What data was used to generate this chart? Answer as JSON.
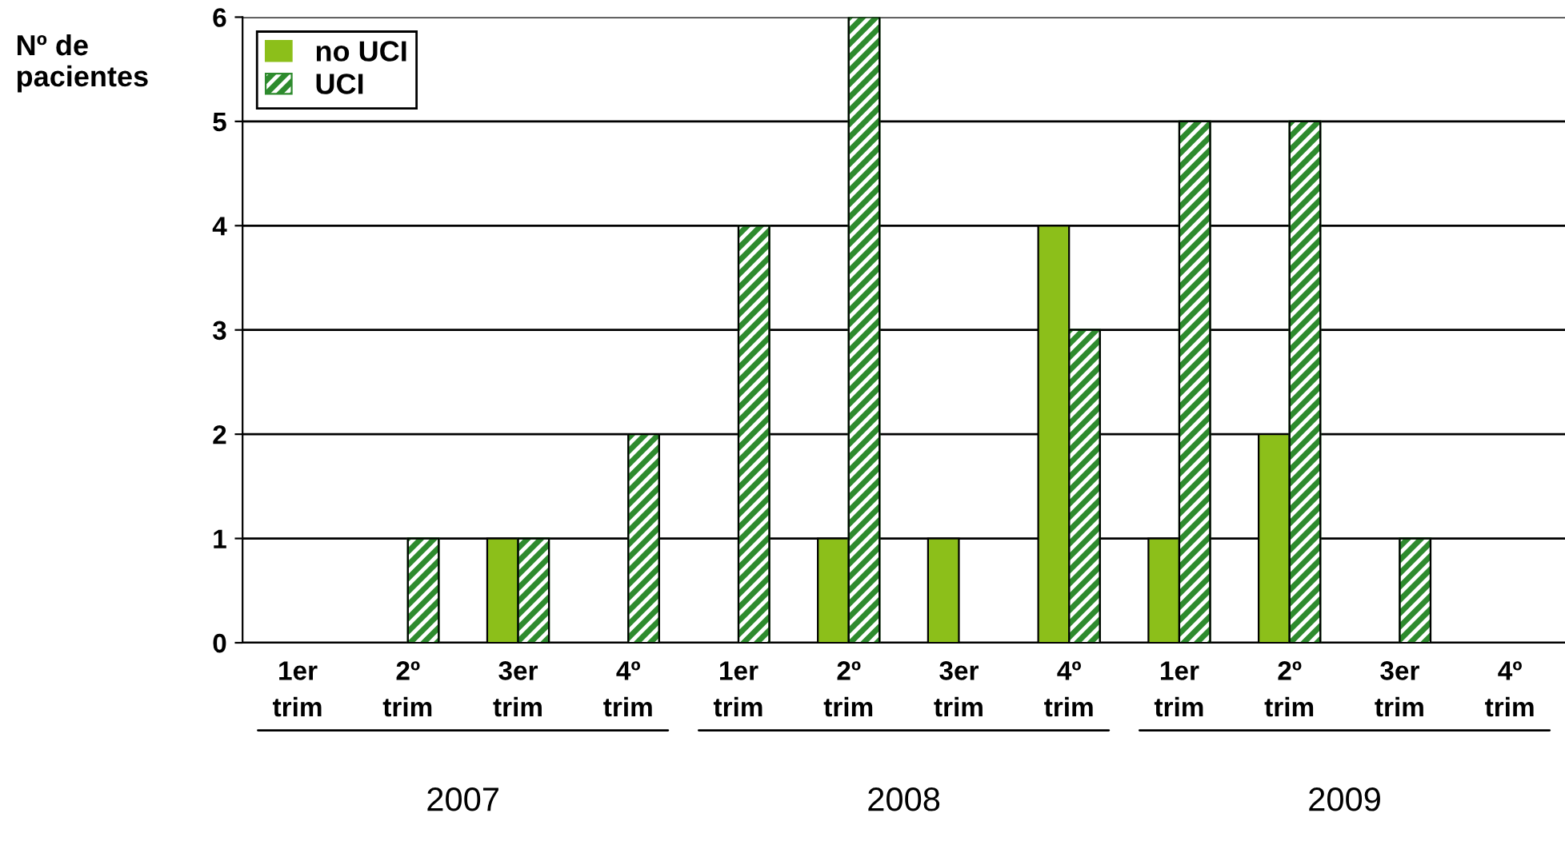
{
  "chart_data": {
    "type": "bar",
    "ylabel": "Nº de\npacientes",
    "categories": [
      "1er\ntrim",
      "2º\ntrim",
      "3er\ntrim",
      "4º\ntrim",
      "1er\ntrim",
      "2º\ntrim",
      "3er\ntrim",
      "4º\ntrim",
      "1er\ntrim",
      "2º\ntrim",
      "3er\ntrim",
      "4º\ntrim"
    ],
    "series": [
      {
        "name": "no UCI",
        "color": "#8cbf1a",
        "values": [
          0,
          0,
          1,
          0,
          0,
          1,
          1,
          4,
          1,
          2,
          0,
          0
        ]
      },
      {
        "name": "UCI",
        "color": "#2e8b2e",
        "values": [
          0,
          1,
          1,
          2,
          4,
          6,
          0,
          3,
          5,
          5,
          1,
          0
        ]
      }
    ],
    "ylim": [
      0,
      6
    ],
    "yticks": [
      0,
      1,
      2,
      3,
      4,
      5,
      6
    ],
    "grid": "y",
    "legend": "top left",
    "annotations": [
      "2007",
      "2008",
      "2009"
    ]
  }
}
